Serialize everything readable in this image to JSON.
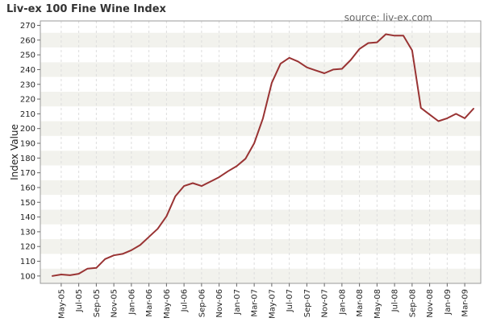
{
  "chart_data": {
    "type": "line",
    "title": "Liv-ex 100 Fine Wine Index",
    "source": "source: liv-ex.com",
    "xlabel": "",
    "ylabel": "Index Value",
    "ylim": [
      95,
      273
    ],
    "yticks": [
      100,
      110,
      120,
      130,
      140,
      150,
      160,
      170,
      180,
      190,
      200,
      210,
      220,
      230,
      240,
      250,
      260,
      270
    ],
    "x": [
      "Apr-05",
      "May-05",
      "Jun-05",
      "Jul-05",
      "Aug-05",
      "Sep-05",
      "Oct-05",
      "Nov-05",
      "Dec-05",
      "Jan-06",
      "Feb-06",
      "Mar-06",
      "Apr-06",
      "May-06",
      "Jun-06",
      "Jul-06",
      "Aug-06",
      "Sep-06",
      "Oct-06",
      "Nov-06",
      "Dec-06",
      "Jan-07",
      "Feb-07",
      "Mar-07",
      "Apr-07",
      "May-07",
      "Jun-07",
      "Jul-07",
      "Aug-07",
      "Sep-07",
      "Oct-07",
      "Nov-07",
      "Dec-07",
      "Jan-08",
      "Feb-08",
      "Mar-08",
      "Apr-08",
      "May-08",
      "Jun-08",
      "Jul-08",
      "Aug-08",
      "Sep-08",
      "Oct-08",
      "Nov-08",
      "Dec-08",
      "Jan-09",
      "Feb-09",
      "Mar-09",
      "Apr-09"
    ],
    "xtick_labels": [
      "May-05",
      "Jul-05",
      "Sep-05",
      "Nov-05",
      "Jan-06",
      "Mar-06",
      "May-06",
      "Jul-06",
      "Sep-06",
      "Nov-06",
      "Jan-07",
      "Mar-07",
      "May-07",
      "Jul-07",
      "Sep-07",
      "Nov-07",
      "Jan-08",
      "Mar-08",
      "May-08",
      "Jul-08",
      "Sep-08",
      "Nov-08",
      "Jan-09",
      "Mar-09"
    ],
    "series": [
      {
        "values": [
          100,
          101,
          100.5,
          101.5,
          105,
          105.5,
          111.5,
          114,
          115,
          117.5,
          121,
          126.5,
          132,
          140.5,
          154,
          161,
          163,
          161,
          164,
          167,
          171,
          174.5,
          179.5,
          190,
          207,
          231,
          244,
          248,
          245.5,
          241.5,
          239.5,
          237.5,
          240,
          240.5,
          246.5,
          254,
          258,
          258.5,
          264,
          263,
          263,
          253,
          214,
          209.5,
          205,
          207,
          210,
          207,
          213.5
        ],
        "color": "#993333"
      }
    ],
    "grid": true,
    "band_colors": [
      "#f2f2ed",
      "#ffffff"
    ],
    "legend": "none"
  }
}
